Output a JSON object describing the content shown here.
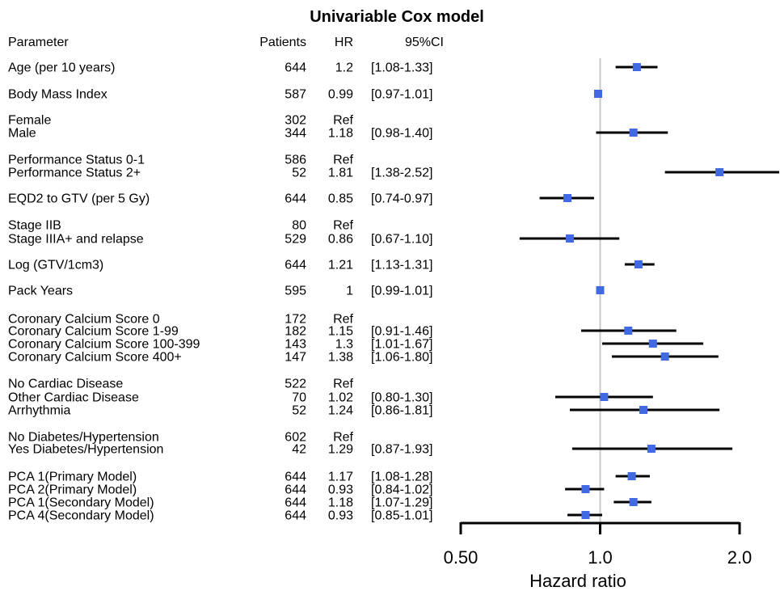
{
  "chart_data": {
    "type": "forest",
    "title": "Univariable Cox model",
    "xlabel": "Hazard ratio",
    "x_scale": "log",
    "xlim": [
      0.5,
      2.0
    ],
    "x_ticks": [
      0.5,
      1.0,
      2.0
    ],
    "x_tick_labels": [
      "0.50",
      "1.0",
      "2.0"
    ],
    "reference_line": 1.0,
    "columns": {
      "parameter": "Parameter",
      "patients": "Patients",
      "hr": "HR",
      "ci": "95%CI"
    },
    "colors": {
      "marker": "#4169E1",
      "ci_line": "#000000",
      "reference": "#c8c8c8"
    },
    "rows": [
      {
        "label": "Age (per 10 years)",
        "patients": "644",
        "hr_text": "1.2",
        "ci_text": "[1.08-1.33]",
        "hr": 1.2,
        "lo": 1.08,
        "hi": 1.33
      },
      {
        "label": "Body Mass Index",
        "patients": "587",
        "hr_text": "0.99",
        "ci_text": "[0.97-1.01]",
        "hr": 0.99,
        "lo": 0.97,
        "hi": 1.01
      },
      {
        "label": "Female",
        "patients": "302",
        "hr_text": "Ref",
        "ci_text": "",
        "hr": null,
        "lo": null,
        "hi": null
      },
      {
        "label": "Male",
        "patients": "344",
        "hr_text": "1.18",
        "ci_text": "[0.98-1.40]",
        "hr": 1.18,
        "lo": 0.98,
        "hi": 1.4
      },
      {
        "label": "Performance Status 0-1",
        "patients": "586",
        "hr_text": "Ref",
        "ci_text": "",
        "hr": null,
        "lo": null,
        "hi": null
      },
      {
        "label": "Performance Status 2+",
        "patients": "52",
        "hr_text": "1.81",
        "ci_text": "[1.38-2.52]",
        "hr": 1.81,
        "lo": 1.38,
        "hi": 2.52
      },
      {
        "label": "EQD2 to GTV (per 5 Gy)",
        "patients": "644",
        "hr_text": "0.85",
        "ci_text": "[0.74-0.97]",
        "hr": 0.85,
        "lo": 0.74,
        "hi": 0.97
      },
      {
        "label": "Stage IIB",
        "patients": "80",
        "hr_text": "Ref",
        "ci_text": "",
        "hr": null,
        "lo": null,
        "hi": null
      },
      {
        "label": "Stage IIIA+ and relapse",
        "patients": "529",
        "hr_text": "0.86",
        "ci_text": "[0.67-1.10]",
        "hr": 0.86,
        "lo": 0.67,
        "hi": 1.1
      },
      {
        "label": "Log (GTV/1cm3)",
        "patients": "644",
        "hr_text": "1.21",
        "ci_text": "[1.13-1.31]",
        "hr": 1.21,
        "lo": 1.13,
        "hi": 1.31
      },
      {
        "label": "Pack Years",
        "patients": "595",
        "hr_text": "1",
        "ci_text": "[0.99-1.01]",
        "hr": 1.0,
        "lo": 0.99,
        "hi": 1.01
      },
      {
        "label": "Coronary Calcium Score 0",
        "patients": "172",
        "hr_text": "Ref",
        "ci_text": "",
        "hr": null,
        "lo": null,
        "hi": null
      },
      {
        "label": "Coronary Calcium Score 1-99",
        "patients": "182",
        "hr_text": "1.15",
        "ci_text": "[0.91-1.46]",
        "hr": 1.15,
        "lo": 0.91,
        "hi": 1.46
      },
      {
        "label": "Coronary Calcium Score 100-399",
        "patients": "143",
        "hr_text": "1.3",
        "ci_text": "[1.01-1.67]",
        "hr": 1.3,
        "lo": 1.01,
        "hi": 1.67
      },
      {
        "label": "Coronary Calcium Score 400+",
        "patients": "147",
        "hr_text": "1.38",
        "ci_text": "[1.06-1.80]",
        "hr": 1.38,
        "lo": 1.06,
        "hi": 1.8
      },
      {
        "label": "No Cardiac Disease",
        "patients": "522",
        "hr_text": "Ref",
        "ci_text": "",
        "hr": null,
        "lo": null,
        "hi": null
      },
      {
        "label": "Other Cardiac Disease",
        "patients": "70",
        "hr_text": "1.02",
        "ci_text": "[0.80-1.30]",
        "hr": 1.02,
        "lo": 0.8,
        "hi": 1.3
      },
      {
        "label": "Arrhythmia",
        "patients": "52",
        "hr_text": "1.24",
        "ci_text": "[0.86-1.81]",
        "hr": 1.24,
        "lo": 0.86,
        "hi": 1.81
      },
      {
        "label": "No Diabetes/Hypertension",
        "patients": "602",
        "hr_text": "Ref",
        "ci_text": "",
        "hr": null,
        "lo": null,
        "hi": null
      },
      {
        "label": "Yes Diabetes/Hypertension",
        "patients": "42",
        "hr_text": "1.29",
        "ci_text": "[0.87-1.93]",
        "hr": 1.29,
        "lo": 0.87,
        "hi": 1.93
      },
      {
        "label": "PCA 1(Primary Model)",
        "patients": "644",
        "hr_text": "1.17",
        "ci_text": "[1.08-1.28]",
        "hr": 1.17,
        "lo": 1.08,
        "hi": 1.28
      },
      {
        "label": "PCA 2(Primary Model)",
        "patients": "644",
        "hr_text": "0.93",
        "ci_text": "[0.84-1.02]",
        "hr": 0.93,
        "lo": 0.84,
        "hi": 1.02
      },
      {
        "label": "PCA 1(Secondary Model)",
        "patients": "644",
        "hr_text": "1.18",
        "ci_text": "[1.07-1.29]",
        "hr": 1.18,
        "lo": 1.07,
        "hi": 1.29
      },
      {
        "label": "PCA 4(Secondary Model)",
        "patients": "644",
        "hr_text": "0.93",
        "ci_text": "[0.85-1.01]",
        "hr": 0.93,
        "lo": 0.85,
        "hi": 1.01
      }
    ]
  }
}
